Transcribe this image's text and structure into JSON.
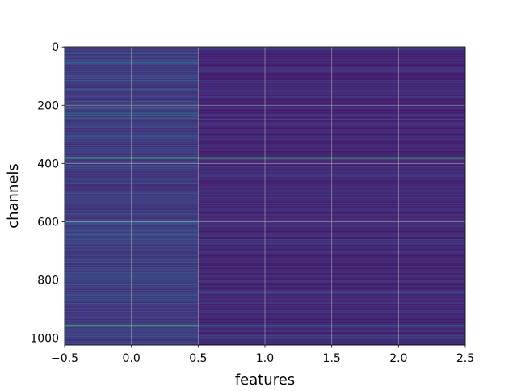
{
  "chart_data": {
    "type": "heatmap",
    "title": "",
    "xlabel": "features",
    "ylabel": "channels",
    "xlim": [
      -0.5,
      2.5
    ],
    "ylim": [
      1023.5,
      -0.5
    ],
    "x_ticks": [
      -0.5,
      0.0,
      0.5,
      1.0,
      1.5,
      2.0,
      2.5
    ],
    "x_tick_labels": [
      "−0.5",
      "0.0",
      "0.5",
      "1.0",
      "1.5",
      "2.0",
      "2.5"
    ],
    "y_ticks": [
      0,
      200,
      400,
      600,
      800,
      1000
    ],
    "y_tick_labels": [
      "0",
      "200",
      "400",
      "600",
      "800",
      "1000"
    ],
    "n_rows": 1024,
    "columns": [
      0,
      1,
      2
    ],
    "column_extents": [
      [
        -0.5,
        0.5
      ],
      [
        0.5,
        1.5
      ],
      [
        1.5,
        2.5
      ]
    ],
    "colormap": "viridis",
    "colormap_stops": [
      "#440154",
      "#482878",
      "#3e4989",
      "#31688e",
      "#26828e",
      "#1f9e89",
      "#35b779",
      "#6ece58",
      "#b5de2b",
      "#fde725"
    ],
    "grid": true,
    "notable_rows": [
      {
        "channel": 5,
        "col0": 0.34,
        "col1": 0.3,
        "col2": 0.3
      },
      {
        "channel": 115,
        "col0": 0.55,
        "col1": 0.25,
        "col2": 0.25
      },
      {
        "channel": 208,
        "col0": 0.55,
        "col1": 0.2,
        "col2": 0.2
      },
      {
        "channel": 212,
        "col0": 0.65,
        "col1": 0.2,
        "col2": 0.2
      },
      {
        "channel": 235,
        "col0": 0.6,
        "col1": 0.22,
        "col2": 0.22
      },
      {
        "channel": 245,
        "col0": 0.55,
        "col1": 0.2,
        "col2": 0.2
      },
      {
        "channel": 378,
        "col0": 0.72,
        "col1": 0.5,
        "col2": 0.5
      },
      {
        "channel": 383,
        "col0": 0.58,
        "col1": 0.78,
        "col2": 0.78
      },
      {
        "channel": 600,
        "col0": 0.55,
        "col1": 0.22,
        "col2": 0.22
      },
      {
        "channel": 610,
        "col0": 0.5,
        "col1": 0.2,
        "col2": 0.2
      },
      {
        "channel": 732,
        "col0": 0.55,
        "col1": 0.2,
        "col2": 0.2
      },
      {
        "channel": 774,
        "col0": 0.52,
        "col1": 0.2,
        "col2": 0.2
      },
      {
        "channel": 880,
        "col0": 0.58,
        "col1": 0.4,
        "col2": 0.4
      },
      {
        "channel": 886,
        "col0": 0.62,
        "col1": 0.5,
        "col2": 0.5
      },
      {
        "channel": 955,
        "col0": 0.85,
        "col1": 0.3,
        "col2": 0.3
      },
      {
        "channel": 960,
        "col0": 0.6,
        "col1": 0.4,
        "col2": 0.4
      }
    ]
  }
}
